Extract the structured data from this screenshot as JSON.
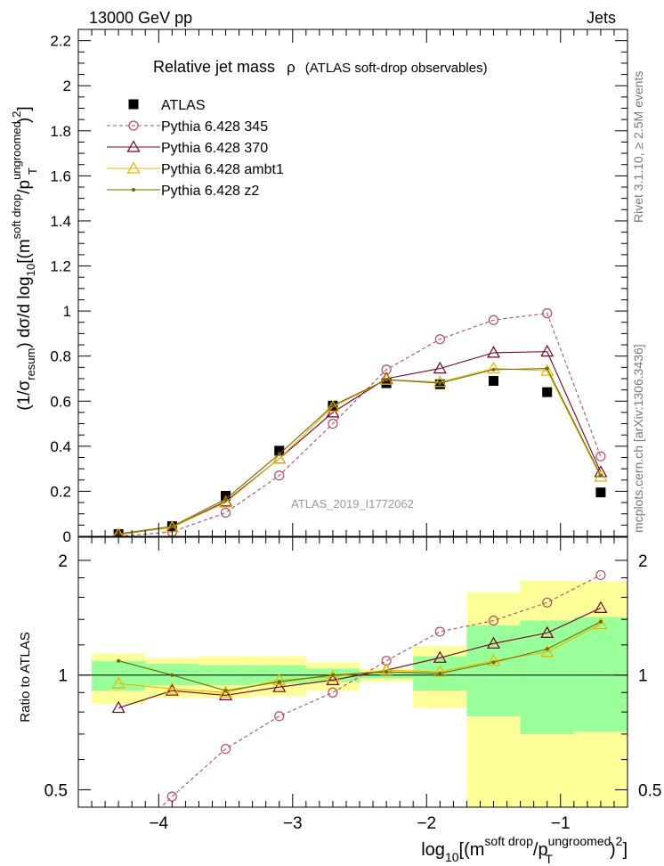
{
  "header": {
    "energy": "13000 GeV pp",
    "process": "Jets",
    "title_main": "Relative jet mass",
    "title_symbol": "ρ",
    "title_sub": "(ATLAS soft-drop observables)",
    "analysis_id": "ATLAS_2019_I1772062",
    "side_rivet": "Rivet 3.1.10, ≥ 2.5M events",
    "side_mcplots": "mcplots.cern.ch [arXiv:1306.3436]"
  },
  "axes": {
    "main_ylabel": {
      "p1": "(1/σ",
      "sub1": "resum",
      "p2": ") dσ/d log",
      "sub2": "10",
      "p3": "[(m",
      "sup1": "soft drop",
      "p4": "/p",
      "sup2": "ungroomed",
      "sub3": "T",
      "p5": ")",
      "sup3": "2",
      "p6": "]"
    },
    "ratio_ylabel": "Ratio to ATLAS",
    "xlabel": {
      "p1": "log",
      "sub1": "10",
      "p2": "[(m",
      "sup1": "soft drop",
      "p3": "/p",
      "sup2": "ungroomed",
      "sub3": "T",
      "p4": ")",
      "sup3": "2",
      "p5": "]"
    },
    "main_yticks": [
      "0",
      "0.2",
      "0.4",
      "0.6",
      "0.8",
      "1",
      "1.2",
      "1.4",
      "1.6",
      "1.8",
      "2",
      "2.2"
    ],
    "xticks": [
      "−4",
      "−3",
      "−2",
      "−1"
    ],
    "ratio_yticks": [
      "0.5",
      "1",
      "2"
    ]
  },
  "colors": {
    "atlas": "#000000",
    "p345": "#b84a5c",
    "p370": "#7a0020",
    "ambt1": "#e8b400",
    "z2": "#6b6b00",
    "band_inner": "#99ff99",
    "band_outer": "#ffff99"
  },
  "chart_data": [
    {
      "type": "line",
      "panel": "main",
      "xlim": [
        -4.6,
        -0.5
      ],
      "ylim": [
        0,
        2.25
      ],
      "x": [
        -4.3,
        -3.9,
        -3.5,
        -3.1,
        -2.7,
        -2.3,
        -1.9,
        -1.5,
        -1.1,
        -0.7
      ],
      "bin_edges": [
        -4.5,
        -4.1,
        -3.7,
        -3.3,
        -2.9,
        -2.5,
        -2.1,
        -1.7,
        -1.3,
        -0.9,
        -0.5
      ],
      "series": [
        {
          "name": "ATLAS",
          "marker": "square",
          "values": [
            0.01,
            0.045,
            0.18,
            0.38,
            0.58,
            0.68,
            0.675,
            0.69,
            0.64,
            0.195
          ]
        },
        {
          "name": "Pythia 6.428 345",
          "marker": "circle",
          "dashed": true,
          "values": [
            0.0,
            0.02,
            0.105,
            0.27,
            0.5,
            0.74,
            0.875,
            0.96,
            0.99,
            0.355
          ]
        },
        {
          "name": "Pythia 6.428 370",
          "marker": "triangle",
          "values": [
            0.008,
            0.04,
            0.155,
            0.345,
            0.55,
            0.7,
            0.745,
            0.815,
            0.82,
            0.285
          ]
        },
        {
          "name": "Pythia 6.428 ambt1",
          "marker": "triangle",
          "values": [
            0.009,
            0.04,
            0.15,
            0.345,
            0.575,
            0.695,
            0.685,
            0.745,
            0.735,
            0.265
          ]
        },
        {
          "name": "Pythia 6.428 z2",
          "marker": "star",
          "values": [
            0.011,
            0.044,
            0.165,
            0.365,
            0.58,
            0.695,
            0.68,
            0.74,
            0.745,
            0.27
          ]
        }
      ]
    },
    {
      "type": "line",
      "panel": "ratio",
      "scale": "log",
      "ylim": [
        0.45,
        2.3
      ],
      "x": [
        -4.3,
        -3.9,
        -3.5,
        -3.1,
        -2.7,
        -2.3,
        -1.9,
        -1.5,
        -1.1,
        -0.7
      ],
      "bands": {
        "inner": [
          [
            0.91,
            1.09
          ],
          [
            0.94,
            1.07
          ],
          [
            0.94,
            1.06
          ],
          [
            0.95,
            1.06
          ],
          [
            0.96,
            1.04
          ],
          [
            0.98,
            1.02
          ],
          [
            0.91,
            1.12
          ],
          [
            0.78,
            1.35
          ],
          [
            0.7,
            1.39
          ],
          [
            0.71,
            1.42
          ]
        ],
        "outer": [
          [
            0.84,
            1.14
          ],
          [
            0.87,
            1.11
          ],
          [
            0.87,
            1.12
          ],
          [
            0.88,
            1.12
          ],
          [
            0.91,
            1.08
          ],
          [
            0.96,
            1.04
          ],
          [
            0.82,
            1.19
          ],
          [
            0.4,
            1.65
          ],
          [
            0.39,
            1.77
          ],
          [
            0.39,
            1.76
          ]
        ]
      },
      "series": [
        {
          "name": "Pythia 6.428 345",
          "marker": "circle",
          "dashed": true,
          "values": [
            0.35,
            0.48,
            0.64,
            0.78,
            0.9,
            1.09,
            1.3,
            1.39,
            1.55,
            1.83
          ]
        },
        {
          "name": "Pythia 6.428 370",
          "marker": "triangle",
          "values": [
            0.82,
            0.91,
            0.885,
            0.93,
            0.97,
            1.03,
            1.11,
            1.21,
            1.29,
            1.5
          ]
        },
        {
          "name": "Pythia 6.428 ambt1",
          "marker": "triangle",
          "values": [
            0.95,
            0.92,
            0.9,
            0.97,
            0.99,
            1.03,
            1.02,
            1.09,
            1.15,
            1.36
          ]
        },
        {
          "name": "Pythia 6.428 z2",
          "marker": "star",
          "values": [
            1.09,
            1.0,
            0.91,
            0.96,
            1.0,
            1.02,
            1.01,
            1.08,
            1.17,
            1.38
          ]
        }
      ]
    }
  ]
}
